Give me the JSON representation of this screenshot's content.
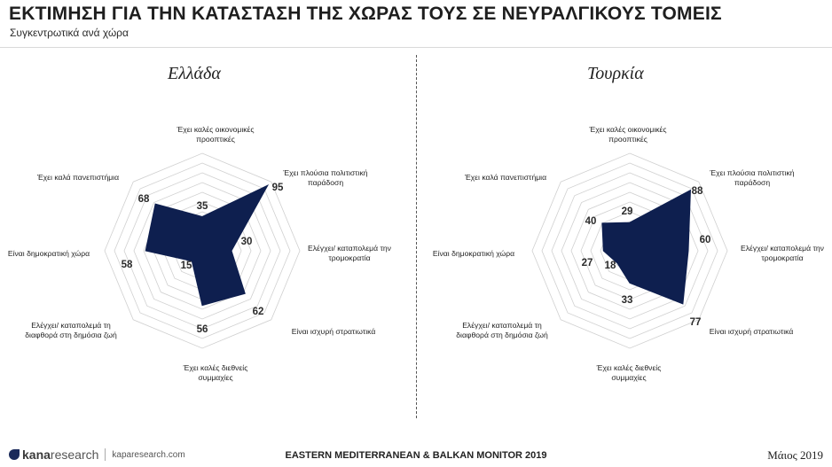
{
  "header": {
    "title": "ΕΚΤΙΜΗΣΗ ΓΙΑ ΤΗΝ ΚΑΤΑΣΤΑΣΗ ΤΗΣ ΧΩΡΑΣ ΤΟΥΣ ΣΕ ΝΕΥΡΑΛΓΙΚΟΥΣ ΤΟΜΕΙΣ",
    "subtitle": "Συγκεντρωτικά ανά χώρα"
  },
  "colors": {
    "fill": "#0e1f4f",
    "grid": "#d0d0d0"
  },
  "chart_data": [
    {
      "type": "radar",
      "title": "Ελλάδα",
      "categories": [
        "Έχει καλές οικονομικές προοπτικές",
        "Έχει πλούσια πολιτιστική παράδοση",
        "Ελέγχει/ καταπολεμά την τρομοκρατία",
        "Είναι ισχυρή στρατιωτικά",
        "Έχει καλές διεθνείς συμμαχίες",
        "Ελέγχει/ καταπολεμά τη διαφθορά στη δημόσια ζωή",
        "Είναι δημοκρατική χώρα",
        "Έχει καλά πανεπιστήμια"
      ],
      "values": [
        35,
        95,
        30,
        62,
        56,
        15,
        58,
        68
      ],
      "rlim": [
        0,
        100
      ],
      "grid": true
    },
    {
      "type": "radar",
      "title": "Τουρκία",
      "categories": [
        "Έχει καλές οικονομικές προοπτικές",
        "Έχει πλούσια πολιτιστική παράδοση",
        "Ελέγχει/ καταπολεμά την τρομοκρατία",
        "Είναι ισχυρή στρατιωτικά",
        "Έχει καλές διεθνείς συμμαχίες",
        "Ελέγχει/ καταπολεμά τη διαφθορά στη δημόσια ζωή",
        "Είναι δημοκρατική χώρα",
        "Έχει καλά πανεπιστήμια"
      ],
      "values": [
        29,
        88,
        60,
        77,
        33,
        18,
        27,
        40
      ],
      "rlim": [
        0,
        100
      ],
      "grid": true
    }
  ],
  "footer": {
    "brand_bold": "kana",
    "brand_rest": "research",
    "url": "kaparesearch.com",
    "center": "EASTERN MEDITERRANEAN & BALKAN MONITOR 2019",
    "date": "Μάιος 2019"
  }
}
